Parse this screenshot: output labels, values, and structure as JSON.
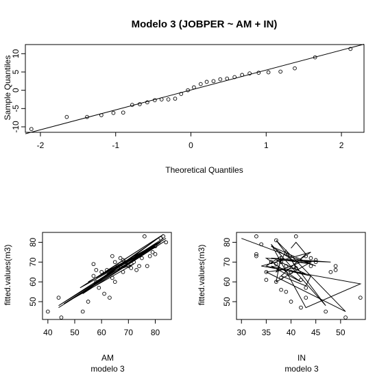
{
  "chart_data": [
    {
      "type": "scatter",
      "subtype": "qq-plot",
      "title": "Modelo 3 (JOBPER ~ AM + IN)",
      "xlabel": "Theoretical Quantiles",
      "ylabel": "Sample Quantiles",
      "xlim": [
        -2.2,
        2.3
      ],
      "ylim": [
        -11.5,
        12.5
      ],
      "xticks": [
        -2,
        -1,
        0,
        1,
        2
      ],
      "yticks": [
        -10,
        -5,
        0,
        5,
        10
      ],
      "grid": false,
      "points": {
        "x": [
          -2.12,
          -1.65,
          -1.38,
          -1.19,
          -1.03,
          -0.9,
          -0.78,
          -0.68,
          -0.58,
          -0.48,
          -0.39,
          -0.3,
          -0.21,
          -0.13,
          -0.04,
          0.04,
          0.13,
          0.21,
          0.3,
          0.39,
          0.48,
          0.58,
          0.68,
          0.78,
          0.9,
          1.03,
          1.19,
          1.38,
          1.65,
          2.12
        ],
        "y": [
          -10.6,
          -7.3,
          -7.3,
          -6.8,
          -6.2,
          -6.1,
          -4.0,
          -3.8,
          -3.3,
          -2.7,
          -2.5,
          -2.5,
          -2.3,
          -1.0,
          0.0,
          0.8,
          1.7,
          2.3,
          2.5,
          3.0,
          3.2,
          3.6,
          4.2,
          4.6,
          4.8,
          4.9,
          5.1,
          6.0,
          9.0,
          11.3
        ]
      },
      "reference_line": {
        "x": [
          -2.2,
          2.3
        ],
        "y": [
          -11.9,
          12.6
        ]
      }
    },
    {
      "type": "scatter",
      "xlabel": "AM",
      "sublabel": "modelo 3",
      "ylabel": "fitted.values(m3)",
      "xlim": [
        38,
        86
      ],
      "ylim": [
        41,
        85
      ],
      "xticks": [
        40,
        50,
        60,
        70,
        80
      ],
      "yticks": [
        50,
        60,
        70,
        80
      ],
      "points": {
        "x": [
          40,
          44,
          45,
          53,
          55,
          57,
          57,
          58,
          58,
          59,
          60,
          61,
          62,
          63,
          64,
          64,
          65,
          65,
          66,
          67,
          67,
          68,
          68,
          69,
          70,
          71,
          72,
          73,
          74,
          75,
          76,
          77,
          78,
          79,
          80,
          80,
          82,
          83,
          84
        ],
        "y": [
          45,
          52,
          42,
          45,
          50,
          63,
          69,
          60,
          66,
          57,
          65,
          54,
          66,
          52,
          62,
          73,
          60,
          70,
          68,
          68,
          72,
          65,
          71,
          70,
          68,
          67,
          70,
          66,
          68,
          72,
          83,
          68,
          73,
          75,
          74,
          78,
          82,
          83,
          80
        ]
      },
      "path": {
        "x": [
          44,
          84,
          53,
          82,
          57,
          83,
          44,
          80,
          60,
          76,
          52,
          83,
          58,
          81,
          55,
          84,
          62,
          80,
          66,
          72,
          46,
          82
        ],
        "y": [
          47,
          81,
          54,
          83,
          59,
          82,
          48,
          78,
          64,
          75,
          57,
          84,
          62,
          79,
          60,
          82,
          64,
          78,
          66,
          69,
          49,
          80
        ]
      }
    },
    {
      "type": "scatter",
      "xlabel": "IN",
      "sublabel": "modelo 3",
      "ylabel": "fitted.values(m3)",
      "xlim": [
        29,
        55
      ],
      "ylim": [
        41,
        85
      ],
      "xticks": [
        30,
        35,
        40,
        45,
        50
      ],
      "yticks": [
        50,
        60,
        70,
        80
      ],
      "points": {
        "x": [
          33,
          33,
          33,
          34,
          35,
          35,
          36,
          36,
          37,
          37,
          37,
          38,
          38,
          38,
          39,
          39,
          40,
          40,
          41,
          41,
          42,
          42,
          43,
          43,
          43,
          44,
          44,
          45,
          45,
          47,
          48,
          49,
          49,
          51,
          54
        ],
        "y": [
          73,
          74,
          83,
          79,
          61,
          65,
          70,
          70,
          60,
          69,
          81,
          56,
          62,
          70,
          55,
          68,
          50,
          65,
          67,
          83,
          47,
          61,
          52,
          57,
          73,
          68,
          72,
          70,
          71,
          45,
          65,
          68,
          66,
          42,
          52
        ]
      },
      "path": {
        "x": [
          30,
          45,
          36,
          41,
          44,
          34,
          54,
          43,
          36,
          47,
          37,
          51,
          35,
          41,
          39,
          37,
          42,
          44,
          36,
          48,
          37,
          43,
          36,
          42,
          35,
          44,
          37,
          38,
          35,
          44,
          43,
          38,
          43,
          41,
          40
        ],
        "y": [
          82,
          68,
          78,
          70,
          75,
          68,
          59,
          47,
          79,
          48,
          81,
          45,
          65,
          67,
          76,
          65,
          70,
          69,
          72,
          70,
          71,
          64,
          68,
          60,
          72,
          70,
          60,
          73,
          68,
          63,
          58,
          63,
          74,
          80,
          77
        ]
      }
    }
  ]
}
